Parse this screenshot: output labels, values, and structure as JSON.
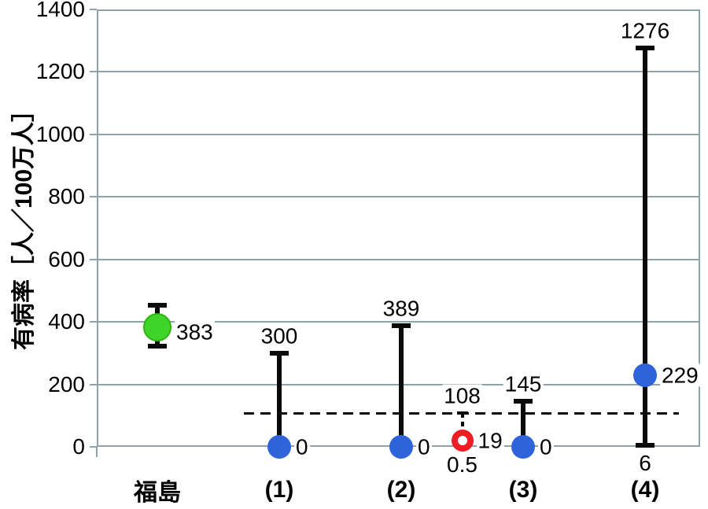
{
  "chart_data": {
    "type": "scatter",
    "title": "",
    "ylabel": "有病率［人／100万人］",
    "xlabel": "",
    "ylim": [
      0,
      1400
    ],
    "grid": true,
    "legend": "none",
    "yticks": [
      {
        "value": 0,
        "label": "0"
      },
      {
        "value": 200,
        "label": "200"
      },
      {
        "value": 400,
        "label": "400"
      },
      {
        "value": 600,
        "label": "600"
      },
      {
        "value": 800,
        "label": "800"
      },
      {
        "value": 1000,
        "label": "1000"
      },
      {
        "value": 1200,
        "label": "1200"
      },
      {
        "value": 1400,
        "label": "1400"
      }
    ],
    "categories": [
      "福島",
      "(1)",
      "(2)",
      "(3)",
      "(4)"
    ],
    "reference_line": {
      "value": 108,
      "style": "dashed"
    },
    "points": [
      {
        "id": "fukushima",
        "category_index": 0,
        "value": 383,
        "ci_low": 322,
        "ci_high": 453,
        "ci_estimated": true,
        "marker": "filled",
        "marker_color": "#3fd42a",
        "marker_border": "#2db40e",
        "marker_size": 36,
        "bar": "solid",
        "value_label": "383",
        "value_label_dy": 6
      },
      {
        "id": "group-1",
        "category_index": 1,
        "value": 0,
        "ci_low": 0,
        "ci_high": 300,
        "marker": "filled",
        "marker_color": "#2e63d9",
        "marker_size": 30,
        "bar": "solid",
        "value_label": "0",
        "ci_high_label": "300"
      },
      {
        "id": "group-2",
        "category_index": 2,
        "value": 0,
        "ci_low": 0,
        "ci_high": 389,
        "marker": "filled",
        "marker_color": "#2e63d9",
        "marker_size": 30,
        "bar": "solid",
        "value_label": "0",
        "ci_high_label": "389"
      },
      {
        "id": "unlabeled-open-point",
        "category_index": 2.5,
        "value": 19,
        "ci_low": 0.5,
        "ci_high": 108,
        "marker": "open",
        "marker_color": "#ee1c23",
        "marker_size": 28,
        "ring_width": 8,
        "bar": "dashed",
        "value_label": "19",
        "ci_low_label": "0.5",
        "ci_high_label": "108"
      },
      {
        "id": "group-3",
        "category_index": 3,
        "value": 0,
        "ci_low": 0,
        "ci_high": 145,
        "marker": "filled",
        "marker_color": "#2e63d9",
        "marker_size": 30,
        "bar": "solid",
        "value_label": "0",
        "ci_high_label": "145"
      },
      {
        "id": "group-4",
        "category_index": 4,
        "value": 229,
        "ci_low": 6,
        "ci_high": 1276,
        "marker": "filled",
        "marker_color": "#2e63d9",
        "marker_size": 30,
        "bar": "solid",
        "value_label": "229",
        "ci_low_label": "6",
        "ci_high_label": "1276"
      }
    ],
    "colors": {
      "grid": "#90a2aa",
      "error_bar": "#0a0a0a",
      "fukushima_marker": "#3fd42a",
      "comparison_marker": "#2e63d9",
      "open_marker": "#ee1c23",
      "text": "#000000",
      "background": "#ffffff"
    }
  }
}
